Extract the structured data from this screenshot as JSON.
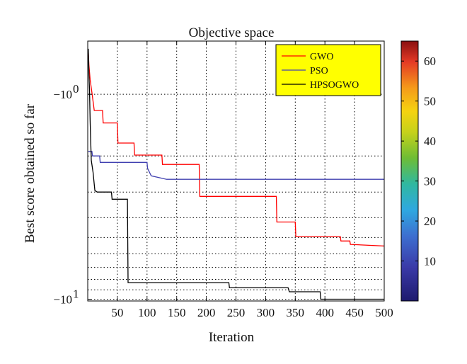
{
  "chart_data": {
    "type": "line",
    "title": "Objective space",
    "xlabel": "Iteration",
    "ylabel": "Best score obtained so far",
    "xlim": [
      0,
      500
    ],
    "x_ticks": [
      50,
      100,
      150,
      200,
      250,
      300,
      350,
      400,
      450,
      500
    ],
    "x_tick_labels": [
      "50",
      "100",
      "150",
      "200",
      "250",
      "300",
      "350",
      "400",
      "450",
      "500"
    ],
    "y_scale": "log",
    "y_note": "negative values plotted on log scale of magnitude; -10^0 at top, -10^1 at bottom",
    "y_ticks": [
      {
        "label_base": "−10",
        "label_exp": "0",
        "magnitude": 1
      },
      {
        "label_base": "−10",
        "label_exp": "1",
        "magnitude": 10
      }
    ],
    "ylim_magnitude": [
      0.55,
      10.2
    ],
    "grid": true,
    "legend": {
      "position": "top-right",
      "background": "#ffff00"
    },
    "colorbar": {
      "min": 0,
      "max": 65,
      "ticks": [
        10,
        20,
        30,
        40,
        50,
        60
      ]
    },
    "series": [
      {
        "name": "GWO",
        "color": "#ff0000",
        "points": [
          [
            1,
            0.62
          ],
          [
            2,
            0.72
          ],
          [
            4,
            0.85
          ],
          [
            7,
            0.98
          ],
          [
            11,
            1.2
          ],
          [
            25,
            1.2
          ],
          [
            26,
            1.38
          ],
          [
            50,
            1.38
          ],
          [
            51,
            1.73
          ],
          [
            78,
            1.73
          ],
          [
            79,
            1.98
          ],
          [
            125,
            1.98
          ],
          [
            126,
            2.2
          ],
          [
            188,
            2.2
          ],
          [
            189,
            3.15
          ],
          [
            318,
            3.15
          ],
          [
            319,
            4.2
          ],
          [
            350,
            4.2
          ],
          [
            351,
            4.95
          ],
          [
            426,
            4.95
          ],
          [
            427,
            5.2
          ],
          [
            442,
            5.2
          ],
          [
            443,
            5.4
          ],
          [
            500,
            5.5
          ]
        ]
      },
      {
        "name": "PSO",
        "color": "#4040b0",
        "points": [
          [
            1,
            1.9
          ],
          [
            7,
            1.9
          ],
          [
            8,
            2.0
          ],
          [
            20,
            2.0
          ],
          [
            21,
            2.15
          ],
          [
            100,
            2.15
          ],
          [
            101,
            2.3
          ],
          [
            107,
            2.5
          ],
          [
            133,
            2.6
          ],
          [
            500,
            2.6
          ]
        ]
      },
      {
        "name": "HPSOGWO",
        "color": "#000000",
        "points": [
          [
            1,
            0.6
          ],
          [
            2,
            0.8
          ],
          [
            3,
            0.95
          ],
          [
            4,
            1.35
          ],
          [
            5,
            1.7
          ],
          [
            6,
            2.1
          ],
          [
            9,
            2.4
          ],
          [
            11,
            2.75
          ],
          [
            12,
            2.95
          ],
          [
            16,
            3.0
          ],
          [
            40,
            3.0
          ],
          [
            41,
            3.25
          ],
          [
            67,
            3.25
          ],
          [
            68,
            8.3
          ],
          [
            238,
            8.3
          ],
          [
            239,
            8.8
          ],
          [
            338,
            8.8
          ],
          [
            340,
            9.2
          ],
          [
            392,
            9.2
          ],
          [
            393,
            10.0
          ],
          [
            500,
            10.0
          ]
        ]
      }
    ]
  }
}
